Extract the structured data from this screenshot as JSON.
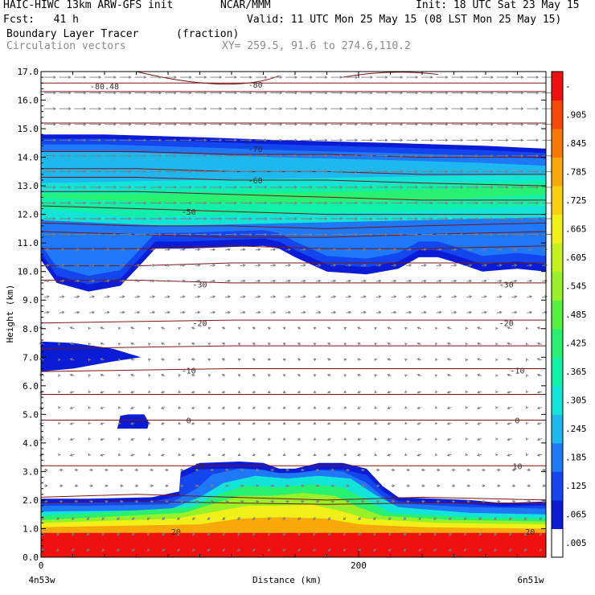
{
  "header": {
    "model_line": "HAIC-HIWC 13km ARW-GFS init",
    "org": "NCAR/MMM",
    "init": "Init: 18 UTC Sat 23 May 15",
    "fcst": "Fcst:   41 h",
    "valid": "Valid: 11 UTC Mon 25 May 15 (08 LST Mon 25 May 15)",
    "field": "Boundary Layer Tracer",
    "field_unit": "(fraction)",
    "vectors": "Circulation vectors",
    "xy": "XY= 259.5, 91.6 to 274.6,110.2"
  },
  "chart_data": {
    "type": "heatmap",
    "ylabel": "Height (km)",
    "xlabel": "Distance (km)",
    "x_start_label": "4n53w",
    "x_end_label": "6n51w",
    "xlim": [
      0,
      318
    ],
    "ylim": [
      0,
      17
    ],
    "x_ticks": [
      "0",
      "200"
    ],
    "y_ticks": [
      "0.0",
      "1.0",
      "2.0",
      "3.0",
      "4.0",
      "5.0",
      "6.0",
      "7.0",
      "8.0",
      "9.0",
      "10.0",
      "11.0",
      "12.0",
      "13.0",
      "14.0",
      "15.0",
      "16.0",
      "17.0"
    ],
    "colorbar": {
      "labels": [
        ".005",
        ".065",
        ".125",
        ".185",
        ".245",
        ".305",
        ".365",
        ".425",
        ".485",
        ".545",
        ".605",
        ".665",
        ".725",
        ".785",
        ".845",
        ".905",
        "-"
      ],
      "colors": [
        "#ffffff",
        "#0a1cd6",
        "#1446f0",
        "#1e78f8",
        "#1eb8f0",
        "#12e4d8",
        "#10f0a8",
        "#28f070",
        "#58f040",
        "#98f028",
        "#c8f020",
        "#f0f018",
        "#f8d010",
        "#f8a808",
        "#f87808",
        "#f84808",
        "#f01010"
      ]
    },
    "temperature_contours": [
      {
        "value": -80,
        "label": "-80"
      },
      {
        "value": -80.48,
        "label": "-80.48"
      },
      {
        "value": -70,
        "label": "-70"
      },
      {
        "value": -60,
        "label": "-60"
      },
      {
        "value": -50,
        "label": "-50"
      },
      {
        "value": -30,
        "label": "-30"
      },
      {
        "value": -20,
        "label": "-20"
      },
      {
        "value": -10,
        "label": "-10"
      },
      {
        "value": 0,
        "label": "0"
      },
      {
        "value": 10,
        "label": "10"
      },
      {
        "value": 20,
        "label": "20"
      }
    ],
    "tracer_regions": [
      {
        "name": "boundary-layer",
        "x": [
          0,
          318
        ],
        "y_bottom": 0.0,
        "y_top": [
          2.0,
          3.3
        ]
      },
      {
        "name": "upper-layer",
        "x": [
          0,
          318
        ],
        "y_bottom": [
          9.3,
          11.0
        ],
        "y_top": 14.8
      },
      {
        "name": "mid-patch",
        "x": [
          0,
          60
        ],
        "y_bottom": 6.5,
        "y_top": 7.5
      },
      {
        "name": "small-patch",
        "x": [
          47,
          67
        ],
        "y_bottom": 4.5,
        "y_top": 5.0
      }
    ],
    "grid": false
  }
}
